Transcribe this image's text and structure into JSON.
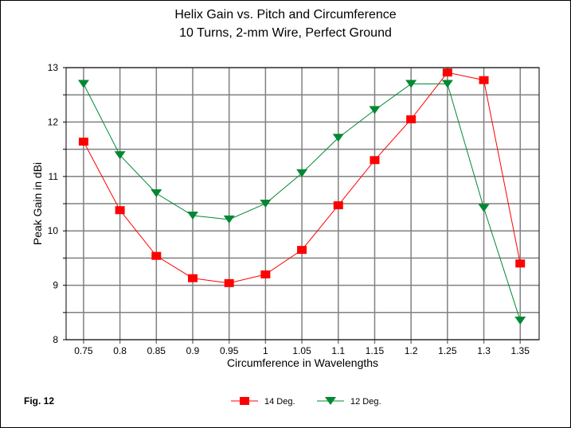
{
  "chart_data": {
    "type": "line",
    "title": "Helix Gain vs. Pitch and Circumference",
    "subtitle": "10 Turns, 2-mm Wire, Perfect Ground",
    "xlabel": "Circumference in Wavelengths",
    "ylabel": "Peak Gain in dBi",
    "x": [
      0.75,
      0.8,
      0.85,
      0.9,
      0.95,
      1.0,
      1.05,
      1.1,
      1.15,
      1.2,
      1.25,
      1.3,
      1.35
    ],
    "x_tick_labels": [
      "0.75",
      "0.8",
      "0.85",
      "0.9",
      "0.95",
      "1",
      "1.05",
      "1.1",
      "1.15",
      "1.2",
      "1.25",
      "1.3",
      "1.35"
    ],
    "y_tick_labels": [
      "8",
      "9",
      "10",
      "11",
      "12",
      "13"
    ],
    "ylim": [
      8,
      13
    ],
    "xlim": [
      0.726,
      1.376
    ],
    "grid": true,
    "legend_placement": "bottom-center",
    "series": [
      {
        "name": "14 Deg.",
        "color": "#ff0000",
        "marker": "square",
        "values": [
          11.64,
          10.38,
          9.54,
          9.13,
          9.04,
          9.2,
          9.65,
          10.47,
          11.3,
          12.05,
          12.91,
          12.77,
          9.4
        ]
      },
      {
        "name": "12 Deg.",
        "color": "#008833",
        "marker": "triangle-down",
        "values": [
          12.7,
          11.39,
          10.69,
          10.28,
          10.21,
          10.5,
          11.06,
          11.71,
          12.22,
          12.7,
          12.7,
          10.42,
          8.35
        ]
      }
    ]
  },
  "figure_label": "Fig. 12"
}
